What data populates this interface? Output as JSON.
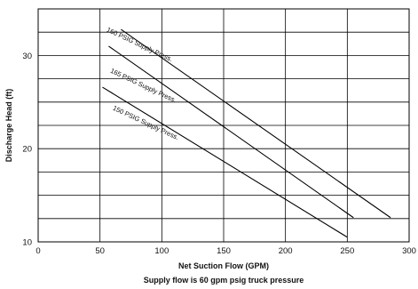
{
  "chart_data": {
    "type": "line",
    "xlabel": "Net Suction Flow (GPM)",
    "ylabel": "Discharge Head (ft)",
    "caption": "Supply flow is 60 gpm psig truck pressure",
    "xlim": [
      0,
      300
    ],
    "ylim": [
      10,
      35
    ],
    "x_ticks": [
      0,
      50,
      100,
      150,
      200,
      250,
      300
    ],
    "x_tick_labels": [
      "0",
      "50",
      "100",
      "150",
      "200",
      "250",
      "300"
    ],
    "y_ticks": [
      10,
      20,
      30
    ],
    "y_tick_labels": [
      "10",
      "20",
      "30"
    ],
    "grid": {
      "horizontal_step": 2.5,
      "vertical_step": 50
    },
    "series": [
      {
        "name": "160 PSIG Supply Press.",
        "x": [
          67,
          285
        ],
        "y": [
          32.8,
          12.6
        ]
      },
      {
        "name": "165 PSIG Supply Press.",
        "x": [
          57,
          255
        ],
        "y": [
          31.0,
          12.6
        ]
      },
      {
        "name": "150 PSIG Supply Press.",
        "x": [
          52,
          250
        ],
        "y": [
          26.6,
          10.5
        ]
      }
    ],
    "series_label_positions": [
      {
        "x": 55,
        "y": 32.6,
        "angle": 25
      },
      {
        "x": 58,
        "y": 28.2,
        "angle": 25
      },
      {
        "x": 60,
        "y": 24.2,
        "angle": 25
      }
    ]
  }
}
